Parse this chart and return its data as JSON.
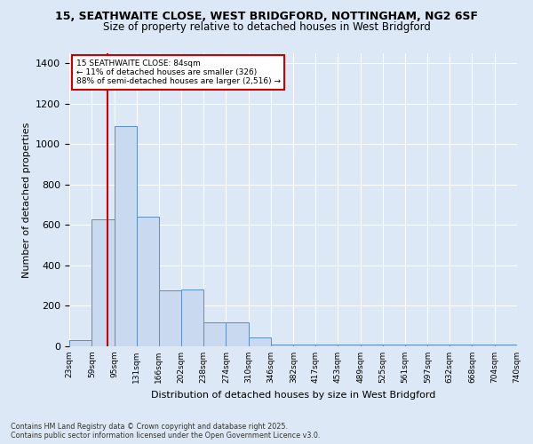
{
  "title_line1": "15, SEATHWAITE CLOSE, WEST BRIDGFORD, NOTTINGHAM, NG2 6SF",
  "title_line2": "Size of property relative to detached houses in West Bridgford",
  "xlabel": "Distribution of detached houses by size in West Bridgford",
  "ylabel": "Number of detached properties",
  "bin_edges": [
    23,
    59,
    95,
    131,
    166,
    202,
    238,
    274,
    310,
    346,
    382,
    417,
    453,
    489,
    525,
    561,
    597,
    632,
    668,
    704,
    740
  ],
  "bin_counts": [
    30,
    630,
    1090,
    640,
    275,
    280,
    120,
    120,
    45,
    10,
    10,
    10,
    10,
    10,
    10,
    10,
    10,
    10,
    10,
    10
  ],
  "bar_color": "#c9d9ef",
  "bar_edge_color": "#5b8ec4",
  "property_size": 84,
  "annotation_line1": "15 SEATHWAITE CLOSE: 84sqm",
  "annotation_line2": "← 11% of detached houses are smaller (326)",
  "annotation_line3": "88% of semi-detached houses are larger (2,516) →",
  "vline_color": "#cc0000",
  "annotation_box_color": "#cc0000",
  "bg_color": "#dce8f5",
  "fig_bg_color": "#dce8f5",
  "ylim": [
    0,
    1450
  ],
  "yticks": [
    0,
    200,
    400,
    600,
    800,
    1000,
    1200,
    1400
  ],
  "footer_line1": "Contains HM Land Registry data © Crown copyright and database right 2025.",
  "footer_line2": "Contains public sector information licensed under the Open Government Licence v3.0."
}
